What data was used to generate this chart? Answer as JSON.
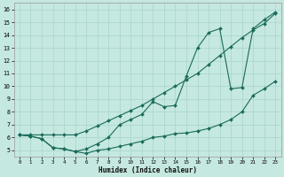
{
  "xlabel": "Humidex (Indice chaleur)",
  "bg_color": "#c5e8e0",
  "grid_color": "#a8d4cc",
  "line_color": "#1a6b5a",
  "xlim": [
    -0.5,
    23.5
  ],
  "ylim": [
    4.5,
    16.5
  ],
  "xticks": [
    0,
    1,
    2,
    3,
    4,
    5,
    6,
    7,
    8,
    9,
    10,
    11,
    12,
    13,
    14,
    15,
    16,
    17,
    18,
    19,
    20,
    21,
    22,
    23
  ],
  "yticks": [
    5,
    6,
    7,
    8,
    9,
    10,
    11,
    12,
    13,
    14,
    15,
    16
  ],
  "series1_x": [
    0,
    1,
    2,
    3,
    4,
    5,
    6,
    7,
    8,
    9,
    10,
    11,
    12,
    13,
    14,
    15,
    16,
    17,
    18,
    19,
    20,
    21,
    22,
    23
  ],
  "series1_y": [
    6.2,
    6.1,
    5.9,
    5.2,
    5.1,
    4.9,
    4.75,
    5.0,
    5.1,
    5.3,
    5.5,
    5.7,
    6.0,
    6.1,
    6.3,
    6.35,
    6.5,
    6.7,
    7.0,
    7.4,
    8.0,
    9.3,
    9.8,
    10.4
  ],
  "series2_x": [
    0,
    1,
    2,
    3,
    4,
    5,
    6,
    7,
    8,
    9,
    10,
    11,
    12,
    13,
    14,
    15,
    16,
    17,
    18,
    19,
    20,
    21,
    22,
    23
  ],
  "series2_y": [
    6.2,
    6.2,
    6.2,
    6.2,
    6.2,
    6.2,
    6.5,
    6.9,
    7.3,
    7.7,
    8.1,
    8.5,
    9.0,
    9.5,
    10.0,
    10.5,
    11.0,
    11.7,
    12.4,
    13.1,
    13.8,
    14.4,
    14.9,
    15.7
  ],
  "series3_x": [
    0,
    1,
    2,
    3,
    4,
    5,
    6,
    7,
    8,
    9,
    10,
    11,
    12,
    13,
    14,
    15,
    16,
    17,
    18,
    19,
    20,
    21,
    22,
    23
  ],
  "series3_y": [
    6.2,
    6.1,
    5.9,
    5.2,
    5.1,
    4.9,
    5.1,
    5.5,
    6.0,
    7.0,
    7.4,
    7.8,
    8.8,
    8.4,
    8.5,
    10.8,
    13.0,
    14.2,
    14.5,
    9.8,
    9.9,
    14.5,
    15.2,
    15.8
  ]
}
